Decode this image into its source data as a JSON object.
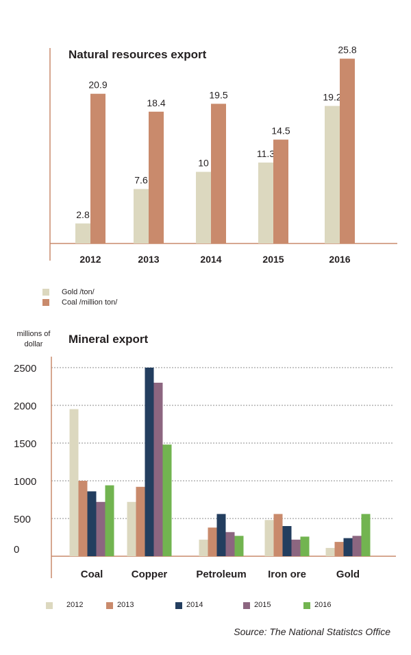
{
  "chart_data": [
    {
      "type": "bar",
      "title": "Natural resources export",
      "categories": [
        "2012",
        "2013",
        "2014",
        "2015",
        "2016"
      ],
      "series": [
        {
          "name": "Gold /ton/",
          "values": [
            2.8,
            7.6,
            10,
            11.3,
            19.2
          ],
          "labels": [
            "2.8",
            "7.6",
            "10",
            "11.3",
            "19.2"
          ]
        },
        {
          "name": "Coal /million ton/",
          "values": [
            20.9,
            18.4,
            19.5,
            14.5,
            25.8
          ],
          "labels": [
            "20.9",
            "18.4",
            "19.5",
            "14.5",
            "25.8"
          ]
        }
      ],
      "ylim": [
        0,
        27
      ],
      "grid": false,
      "legend": "bottom-left",
      "colors": [
        "#dcd8bf",
        "#c98a6c"
      ]
    },
    {
      "type": "bar",
      "title": "Mineral export",
      "ylabel": "millions of dollar",
      "categories": [
        "Coal",
        "Copper",
        "Petroleum",
        "Iron ore",
        "Gold"
      ],
      "series": [
        {
          "name": "2012",
          "values": [
            1950,
            720,
            220,
            480,
            110
          ]
        },
        {
          "name": "2013",
          "values": [
            1000,
            920,
            380,
            560,
            190
          ]
        },
        {
          "name": "2014",
          "values": [
            860,
            2500,
            560,
            400,
            240
          ]
        },
        {
          "name": "2015",
          "values": [
            720,
            2300,
            320,
            220,
            270
          ]
        },
        {
          "name": "2016",
          "values": [
            940,
            1480,
            270,
            260,
            560
          ]
        }
      ],
      "yticks": [
        0,
        500,
        1000,
        1500,
        2000,
        2500
      ],
      "ylim": [
        0,
        2500
      ],
      "grid": true,
      "legend": "bottom",
      "colors": [
        "#dcd8bf",
        "#c98a6c",
        "#233e5f",
        "#8c6680",
        "#72b450"
      ]
    }
  ],
  "source": "Source: The National Statistcs Office"
}
